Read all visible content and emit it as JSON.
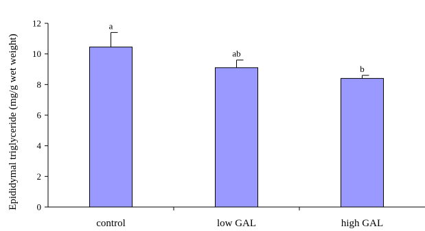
{
  "chart_data": {
    "type": "bar",
    "title": "",
    "xlabel": "",
    "ylabel": "Epididymal triglyceride (mg/g wet weight)",
    "ylim": [
      0,
      12
    ],
    "yticks": [
      0,
      2,
      4,
      6,
      8,
      10,
      12
    ],
    "categories": [
      "control",
      "low GAL",
      "high GAL"
    ],
    "values": [
      10.45,
      9.1,
      8.4
    ],
    "errors": [
      0.95,
      0.5,
      0.2
    ],
    "significance_labels": [
      "a",
      "ab",
      "b"
    ],
    "bar_color": "#9999ff",
    "grid": false,
    "legend": "none"
  }
}
